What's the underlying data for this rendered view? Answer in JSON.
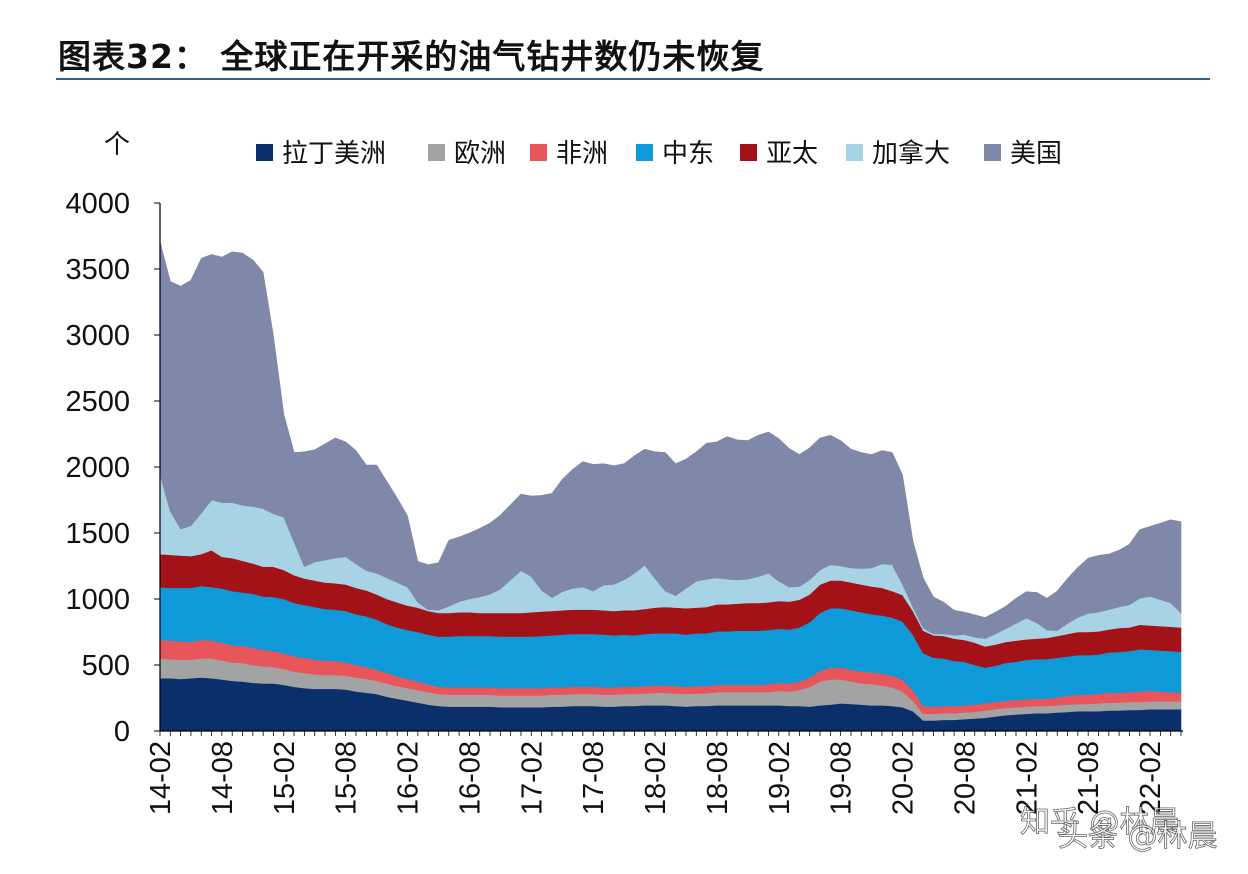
{
  "title": "图表32： 全球正在开采的油气钻井数仍未恢复",
  "watermark": {
    "line1": "知乎 @林晨",
    "line2": "头条 @林晨"
  },
  "chart_data": {
    "type": "area",
    "stacked": true,
    "unit_label": "个",
    "ylim": [
      0,
      4000
    ],
    "yticks": [
      0,
      500,
      1000,
      1500,
      2000,
      2500,
      3000,
      3500,
      4000
    ],
    "xtick_labels": [
      "14-02",
      "14-08",
      "15-02",
      "15-08",
      "16-02",
      "16-08",
      "17-02",
      "17-08",
      "18-02",
      "18-08",
      "19-02",
      "19-08",
      "20-02",
      "20-08",
      "21-02",
      "21-08",
      "22-02"
    ],
    "legend_position": "top",
    "grid": false,
    "x": [
      "14-02",
      "14-03",
      "14-04",
      "14-05",
      "14-06",
      "14-07",
      "14-08",
      "14-09",
      "14-10",
      "14-11",
      "14-12",
      "15-01",
      "15-02",
      "15-03",
      "15-04",
      "15-05",
      "15-06",
      "15-07",
      "15-08",
      "15-09",
      "15-10",
      "15-11",
      "15-12",
      "16-01",
      "16-02",
      "16-03",
      "16-04",
      "16-05",
      "16-06",
      "16-07",
      "16-08",
      "16-09",
      "16-10",
      "16-11",
      "16-12",
      "17-01",
      "17-02",
      "17-03",
      "17-04",
      "17-05",
      "17-06",
      "17-07",
      "17-08",
      "17-09",
      "17-10",
      "17-11",
      "17-12",
      "18-01",
      "18-02",
      "18-03",
      "18-04",
      "18-05",
      "18-06",
      "18-07",
      "18-08",
      "18-09",
      "18-10",
      "18-11",
      "18-12",
      "19-01",
      "19-02",
      "19-03",
      "19-04",
      "19-05",
      "19-06",
      "19-07",
      "19-08",
      "19-09",
      "19-10",
      "19-11",
      "19-12",
      "20-01",
      "20-02",
      "20-03",
      "20-04",
      "20-05",
      "20-06",
      "20-07",
      "20-08",
      "20-09",
      "20-10",
      "20-11",
      "20-12",
      "21-01",
      "21-02",
      "21-03",
      "21-04",
      "21-05",
      "21-06",
      "21-07",
      "21-08",
      "21-09",
      "21-10",
      "21-11",
      "21-12",
      "22-01",
      "22-02",
      "22-03",
      "22-04",
      "22-05"
    ],
    "series": [
      {
        "name": "拉丁美洲",
        "color": "#0b2f6b",
        "values": [
          400,
          400,
          395,
          400,
          405,
          400,
          390,
          380,
          375,
          365,
          360,
          360,
          350,
          335,
          325,
          320,
          320,
          320,
          315,
          300,
          290,
          280,
          260,
          245,
          230,
          215,
          200,
          190,
          185,
          185,
          185,
          185,
          185,
          180,
          180,
          180,
          180,
          180,
          185,
          185,
          190,
          190,
          190,
          185,
          185,
          190,
          190,
          195,
          195,
          195,
          190,
          185,
          190,
          190,
          195,
          195,
          195,
          195,
          195,
          195,
          195,
          190,
          190,
          185,
          195,
          200,
          210,
          205,
          200,
          195,
          195,
          190,
          180,
          150,
          80,
          80,
          85,
          85,
          90,
          95,
          100,
          110,
          120,
          125,
          130,
          135,
          135,
          140,
          145,
          150,
          150,
          150,
          155,
          155,
          160,
          160,
          165,
          165,
          165,
          165
        ]
      },
      {
        "name": "欧洲",
        "color": "#a3a3a3",
        "values": [
          150,
          145,
          145,
          140,
          145,
          150,
          145,
          140,
          140,
          135,
          130,
          125,
          120,
          115,
          115,
          110,
          105,
          105,
          105,
          105,
          105,
          100,
          100,
          95,
          95,
          95,
          95,
          90,
          90,
          90,
          90,
          90,
          90,
          90,
          90,
          90,
          90,
          90,
          90,
          90,
          90,
          90,
          90,
          90,
          90,
          90,
          90,
          90,
          95,
          95,
          95,
          95,
          95,
          95,
          100,
          100,
          100,
          100,
          100,
          100,
          110,
          110,
          120,
          150,
          180,
          190,
          180,
          170,
          160,
          160,
          150,
          140,
          120,
          80,
          50,
          50,
          50,
          50,
          50,
          50,
          55,
          55,
          55,
          55,
          55,
          55,
          55,
          55,
          55,
          55,
          55,
          60,
          60,
          60,
          60,
          60,
          60,
          60,
          60,
          60
        ]
      },
      {
        "name": "非洲",
        "color": "#e8565c",
        "values": [
          140,
          140,
          140,
          135,
          140,
          135,
          135,
          130,
          130,
          130,
          125,
          120,
          120,
          115,
          115,
          110,
          110,
          105,
          100,
          95,
          90,
          85,
          80,
          75,
          70,
          65,
          60,
          55,
          55,
          55,
          55,
          55,
          55,
          55,
          55,
          55,
          55,
          55,
          55,
          55,
          55,
          55,
          55,
          55,
          55,
          55,
          55,
          55,
          55,
          55,
          55,
          55,
          55,
          55,
          55,
          55,
          55,
          55,
          55,
          60,
          60,
          60,
          65,
          70,
          80,
          90,
          90,
          90,
          90,
          90,
          90,
          90,
          90,
          80,
          60,
          55,
          55,
          55,
          55,
          55,
          55,
          55,
          55,
          55,
          55,
          55,
          55,
          60,
          65,
          70,
          70,
          70,
          75,
          75,
          75,
          80,
          80,
          75,
          70,
          65
        ]
      },
      {
        "name": "中东",
        "color": "#0e9ad8",
        "values": [
          400,
          400,
          405,
          410,
          410,
          405,
          410,
          410,
          405,
          410,
          405,
          410,
          410,
          405,
          400,
          400,
          390,
          390,
          390,
          385,
          385,
          380,
          370,
          370,
          370,
          375,
          375,
          380,
          385,
          390,
          390,
          390,
          390,
          390,
          390,
          390,
          390,
          395,
          395,
          400,
          400,
          400,
          400,
          400,
          395,
          395,
          390,
          395,
          395,
          395,
          400,
          395,
          400,
          400,
          405,
          405,
          410,
          410,
          410,
          410,
          410,
          410,
          410,
          420,
          440,
          450,
          450,
          450,
          450,
          440,
          440,
          440,
          440,
          420,
          400,
          370,
          360,
          340,
          330,
          300,
          270,
          275,
          285,
          290,
          300,
          300,
          300,
          300,
          300,
          300,
          300,
          300,
          305,
          310,
          310,
          320,
          310,
          310,
          310,
          310
        ]
      },
      {
        "name": "亚太",
        "color": "#a31216",
        "values": [
          250,
          250,
          245,
          240,
          240,
          280,
          240,
          250,
          240,
          230,
          225,
          230,
          220,
          210,
          200,
          200,
          200,
          200,
          200,
          200,
          195,
          190,
          190,
          190,
          185,
          185,
          180,
          180,
          180,
          180,
          180,
          175,
          175,
          180,
          180,
          180,
          185,
          185,
          185,
          185,
          185,
          185,
          185,
          185,
          185,
          185,
          190,
          190,
          195,
          200,
          195,
          200,
          195,
          200,
          205,
          205,
          205,
          210,
          210,
          210,
          210,
          210,
          210,
          210,
          215,
          210,
          210,
          210,
          210,
          210,
          210,
          200,
          200,
          180,
          170,
          170,
          170,
          170,
          165,
          170,
          160,
          160,
          160,
          160,
          155,
          155,
          160,
          165,
          170,
          175,
          175,
          175,
          175,
          180,
          180,
          185,
          185,
          185,
          185,
          185
        ]
      },
      {
        "name": "加拿大",
        "color": "#a8d3e5",
        "values": [
          600,
          330,
          200,
          230,
          310,
          380,
          410,
          420,
          420,
          430,
          440,
          400,
          400,
          250,
          90,
          140,
          170,
          190,
          210,
          180,
          150,
          160,
          160,
          150,
          140,
          40,
          10,
          20,
          50,
          80,
          100,
          120,
          140,
          180,
          250,
          320,
          270,
          160,
          100,
          140,
          160,
          170,
          140,
          190,
          200,
          230,
          280,
          330,
          220,
          120,
          90,
          150,
          200,
          210,
          200,
          190,
          180,
          180,
          200,
          220,
          150,
          110,
          100,
          110,
          110,
          120,
          110,
          110,
          120,
          140,
          180,
          200,
          80,
          30,
          20,
          10,
          15,
          25,
          40,
          40,
          60,
          80,
          100,
          130,
          160,
          120,
          60,
          40,
          80,
          110,
          140,
          145,
          150,
          160,
          170,
          200,
          220,
          200,
          180,
          110
        ]
      },
      {
        "name": "美国",
        "color": "#7f88a8",
        "values": [
          1770,
          1740,
          1840,
          1860,
          1930,
          1860,
          1860,
          1900,
          1910,
          1870,
          1790,
          1350,
          780,
          680,
          870,
          850,
          880,
          910,
          870,
          860,
          800,
          820,
          730,
          640,
          540,
          310,
          340,
          360,
          500,
          490,
          500,
          520,
          540,
          560,
          570,
          580,
          610,
          720,
          790,
          850,
          900,
          950,
          960,
          920,
          900,
          880,
          890,
          880,
          960,
          1050,
          1000,
          980,
          980,
          1030,
          1030,
          1080,
          1060,
          1050,
          1070,
          1070,
          1080,
          1050,
          1000,
          1000,
          1000,
          980,
          950,
          900,
          880,
          860,
          860,
          850,
          830,
          500,
          380,
          280,
          240,
          190,
          170,
          170,
          160,
          165,
          170,
          190,
          200,
          230,
          240,
          300,
          340,
          380,
          420,
          430,
          420,
          430,
          460,
          520,
          530,
          580,
          630,
          690
        ]
      }
    ]
  },
  "colors": {
    "title_rule": "#2f5f8a",
    "axis": "#000000"
  }
}
